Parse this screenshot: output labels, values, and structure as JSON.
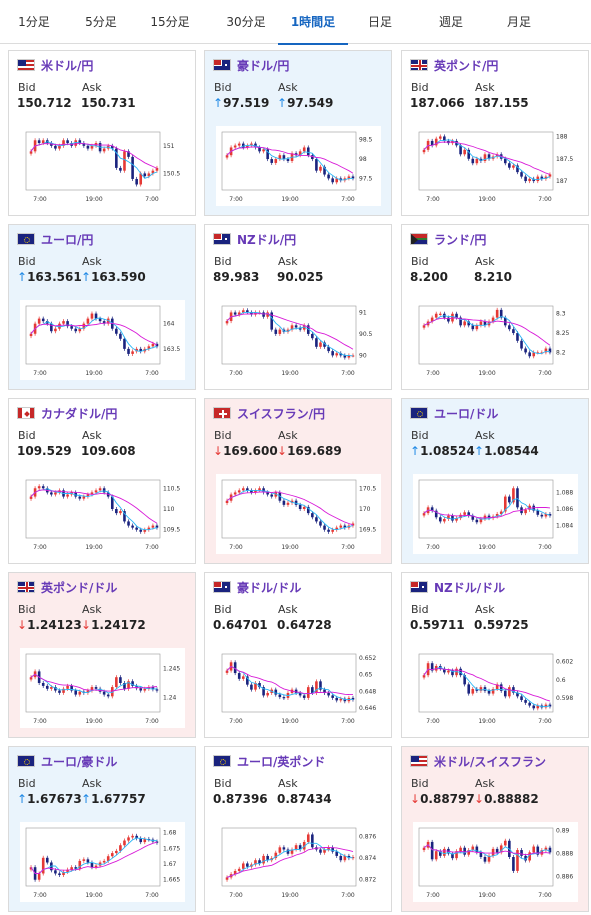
{
  "tabs": [
    {
      "label": "1分足",
      "active": false
    },
    {
      "label": "5分足",
      "active": false
    },
    {
      "label": "15分足",
      "active": false
    },
    {
      "label": "30分足",
      "active": false
    },
    {
      "label": "1時間足",
      "active": true
    },
    {
      "label": "日足",
      "active": false
    },
    {
      "label": "週足",
      "active": false
    },
    {
      "label": "月足",
      "active": false
    }
  ],
  "colors": {
    "accent": "#1565c0",
    "pair": "#673ab7",
    "up_candle": "#e53935",
    "down_candle": "#1a237e",
    "ma_short": "#29b6f6",
    "ma_long": "#d81bd8"
  },
  "cards": [
    {
      "pair": "米ドル/円",
      "flag": "flag-us",
      "bid_label": "Bid",
      "ask_label": "Ask",
      "bid": "150.712",
      "ask": "150.731",
      "trend": "none",
      "chart_data": {
        "type": "candlestick",
        "ylim": [
          150.2,
          151.25
        ],
        "yticks": [
          "151",
          "150.5"
        ],
        "xticks": [
          "7:00",
          "19:00",
          "7:00"
        ],
        "close": [
          150.9,
          151.1,
          151.05,
          151.1,
          151.05,
          151.0,
          150.95,
          151.0,
          151.1,
          151.05,
          151.0,
          151.1,
          151.05,
          151.0,
          150.95,
          151.0,
          151.05,
          150.9,
          150.95,
          151.0,
          150.95,
          150.6,
          150.55,
          150.9,
          150.8,
          150.4,
          150.3,
          150.5,
          150.45,
          150.5,
          150.55,
          150.6
        ]
      }
    },
    {
      "pair": "豪ドル/円",
      "flag": "flag-au",
      "bid_label": "Bid",
      "ask_label": "Ask",
      "bid": "97.519",
      "ask": "97.549",
      "trend": "up",
      "chart_data": {
        "type": "candlestick",
        "ylim": [
          97.2,
          98.7
        ],
        "yticks": [
          "98.5",
          "98",
          "97.5"
        ],
        "xticks": [
          "7:00",
          "19:00",
          "7:00"
        ],
        "close": [
          98.1,
          98.3,
          98.35,
          98.4,
          98.3,
          98.35,
          98.4,
          98.3,
          98.2,
          98.25,
          98.0,
          97.9,
          98.0,
          98.1,
          98.0,
          97.95,
          98.15,
          98.1,
          98.2,
          98.3,
          98.1,
          98.0,
          97.7,
          97.8,
          97.6,
          97.5,
          97.4,
          97.5,
          97.45,
          97.5,
          97.55,
          97.5
        ]
      }
    },
    {
      "pair": "英ポンド/円",
      "flag": "flag-gb",
      "bid_label": "Bid",
      "ask_label": "Ask",
      "bid": "187.066",
      "ask": "187.155",
      "trend": "none",
      "chart_data": {
        "type": "candlestick",
        "ylim": [
          186.8,
          188.1
        ],
        "yticks": [
          "188",
          "187.5",
          "187"
        ],
        "xticks": [
          "7:00",
          "19:00",
          "7:00"
        ],
        "close": [
          187.7,
          187.9,
          187.8,
          187.95,
          188.0,
          187.9,
          187.85,
          187.9,
          187.8,
          187.6,
          187.7,
          187.5,
          187.4,
          187.5,
          187.45,
          187.6,
          187.5,
          187.55,
          187.6,
          187.5,
          187.4,
          187.3,
          187.35,
          187.2,
          187.1,
          187.0,
          187.05,
          187.0,
          187.1,
          187.05,
          187.1,
          187.15
        ]
      }
    },
    {
      "pair": "ユーロ/円",
      "flag": "flag-eu",
      "bid_label": "Bid",
      "ask_label": "Ask",
      "bid": "163.561",
      "ask": "163.590",
      "trend": "up",
      "chart_data": {
        "type": "candlestick",
        "ylim": [
          163.2,
          164.35
        ],
        "yticks": [
          "164",
          "163.5"
        ],
        "xticks": [
          "7:00",
          "19:00",
          "7:00"
        ],
        "close": [
          163.8,
          164.0,
          164.1,
          164.05,
          164.0,
          163.85,
          163.9,
          164.0,
          164.05,
          163.95,
          163.9,
          163.85,
          163.9,
          164.0,
          164.1,
          164.2,
          164.1,
          164.05,
          164.0,
          164.1,
          163.9,
          163.8,
          163.7,
          163.5,
          163.4,
          163.45,
          163.5,
          163.45,
          163.5,
          163.55,
          163.6,
          163.55
        ]
      }
    },
    {
      "pair": "NZドル/円",
      "flag": "flag-nz",
      "bid_label": "Bid",
      "ask_label": "Ask",
      "bid": "89.983",
      "ask": "90.025",
      "trend": "none",
      "chart_data": {
        "type": "candlestick",
        "ylim": [
          89.8,
          91.15
        ],
        "yticks": [
          "91",
          "90.5",
          "90"
        ],
        "xticks": [
          "7:00",
          "19:00",
          "7:00"
        ],
        "close": [
          90.8,
          91.0,
          90.95,
          91.0,
          91.05,
          91.0,
          90.95,
          91.0,
          91.0,
          90.9,
          91.0,
          90.6,
          90.5,
          90.6,
          90.55,
          90.6,
          90.7,
          90.65,
          90.6,
          90.7,
          90.5,
          90.4,
          90.2,
          90.3,
          90.2,
          90.1,
          90.0,
          90.05,
          90.0,
          89.95,
          90.0,
          90.0
        ]
      }
    },
    {
      "pair": "ランド/円",
      "flag": "flag-za",
      "bid_label": "Bid",
      "ask_label": "Ask",
      "bid": "8.200",
      "ask": "8.210",
      "trend": "none",
      "chart_data": {
        "type": "candlestick",
        "ylim": [
          8.17,
          8.32
        ],
        "yticks": [
          "8.3",
          "8.25",
          "8.2"
        ],
        "xticks": [
          "7:00",
          "19:00",
          "7:00"
        ],
        "close": [
          8.27,
          8.28,
          8.29,
          8.3,
          8.3,
          8.29,
          8.28,
          8.3,
          8.29,
          8.27,
          8.28,
          8.27,
          8.26,
          8.27,
          8.28,
          8.27,
          8.28,
          8.29,
          8.31,
          8.29,
          8.27,
          8.26,
          8.25,
          8.23,
          8.21,
          8.2,
          8.19,
          8.2,
          8.2,
          8.2,
          8.21,
          8.2
        ]
      }
    },
    {
      "pair": "カナダドル/円",
      "flag": "flag-ca",
      "bid_label": "Bid",
      "ask_label": "Ask",
      "bid": "109.529",
      "ask": "109.608",
      "trend": "none",
      "chart_data": {
        "type": "candlestick",
        "ylim": [
          109.3,
          110.7
        ],
        "yticks": [
          "110.5",
          "110",
          "109.5"
        ],
        "xticks": [
          "7:00",
          "19:00",
          "7:00"
        ],
        "close": [
          110.3,
          110.5,
          110.55,
          110.5,
          110.4,
          110.35,
          110.4,
          110.45,
          110.3,
          110.35,
          110.4,
          110.3,
          110.25,
          110.3,
          110.35,
          110.4,
          110.45,
          110.5,
          110.4,
          110.3,
          110.0,
          109.9,
          109.95,
          109.7,
          109.6,
          109.55,
          109.5,
          109.45,
          109.5,
          109.55,
          109.6,
          109.55
        ]
      }
    },
    {
      "pair": "スイスフラン/円",
      "flag": "flag-ch",
      "bid_label": "Bid",
      "ask_label": "Ask",
      "bid": "169.600",
      "ask": "169.689",
      "trend": "down",
      "chart_data": {
        "type": "candlestick",
        "ylim": [
          169.3,
          170.7
        ],
        "yticks": [
          "170.5",
          "170",
          "169.5"
        ],
        "xticks": [
          "7:00",
          "19:00",
          "7:00"
        ],
        "close": [
          170.2,
          170.35,
          170.4,
          170.45,
          170.5,
          170.45,
          170.4,
          170.45,
          170.5,
          170.4,
          170.35,
          170.3,
          170.4,
          170.2,
          170.1,
          170.15,
          170.2,
          170.1,
          170.0,
          170.05,
          169.9,
          169.8,
          169.7,
          169.6,
          169.5,
          169.45,
          169.5,
          169.55,
          169.6,
          169.55,
          169.6,
          169.65
        ]
      }
    },
    {
      "pair": "ユーロ/ドル",
      "flag": "flag-eu",
      "bid_label": "Bid",
      "ask_label": "Ask",
      "bid": "1.08524",
      "ask": "1.08544",
      "trend": "up",
      "chart_data": {
        "type": "candlestick",
        "ylim": [
          1.0825,
          1.0895
        ],
        "yticks": [
          "1.088",
          "1.086",
          "1.084"
        ],
        "xticks": [
          "7:00",
          "19:00",
          "7:00"
        ],
        "close": [
          1.0855,
          1.0862,
          1.0858,
          1.085,
          1.0845,
          1.0848,
          1.0852,
          1.0846,
          1.0849,
          1.0853,
          1.0856,
          1.0852,
          1.0847,
          1.0844,
          1.0848,
          1.0852,
          1.0849,
          1.0851,
          1.0854,
          1.0857,
          1.0875,
          1.0868,
          1.0885,
          1.0862,
          1.0855,
          1.0859,
          1.0864,
          1.0858,
          1.0853,
          1.0851,
          1.0854,
          1.0852
        ]
      }
    },
    {
      "pair": "英ポンド/ドル",
      "flag": "flag-gb",
      "bid_label": "Bid",
      "ask_label": "Ask",
      "bid": "1.24123",
      "ask": "1.24172",
      "trend": "down",
      "chart_data": {
        "type": "candlestick",
        "ylim": [
          1.2375,
          1.2475
        ],
        "yticks": [
          "1.245",
          "1.24"
        ],
        "xticks": [
          "7:00",
          "19:00",
          "7:00"
        ],
        "close": [
          1.2435,
          1.2445,
          1.2425,
          1.242,
          1.2415,
          1.2418,
          1.2412,
          1.2408,
          1.2415,
          1.242,
          1.2412,
          1.2405,
          1.241,
          1.2408,
          1.2412,
          1.2418,
          1.2415,
          1.241,
          1.2405,
          1.2402,
          1.2418,
          1.2435,
          1.2425,
          1.2415,
          1.2428,
          1.242,
          1.2416,
          1.2412,
          1.2415,
          1.2418,
          1.2414,
          1.2412
        ]
      }
    },
    {
      "pair": "豪ドル/ドル",
      "flag": "flag-au",
      "bid_label": "Bid",
      "ask_label": "Ask",
      "bid": "0.64701",
      "ask": "0.64728",
      "trend": "none",
      "chart_data": {
        "type": "candlestick",
        "ylim": [
          0.6455,
          0.6525
        ],
        "yticks": [
          "0.652",
          "0.65",
          "0.648",
          "0.646"
        ],
        "xticks": [
          "7:00",
          "19:00",
          "7:00"
        ],
        "close": [
          0.6505,
          0.6515,
          0.6502,
          0.6495,
          0.6498,
          0.6488,
          0.6482,
          0.649,
          0.6485,
          0.6475,
          0.6478,
          0.6482,
          0.6476,
          0.6473,
          0.6472,
          0.6478,
          0.6482,
          0.6478,
          0.6475,
          0.6472,
          0.6485,
          0.6478,
          0.6492,
          0.6482,
          0.6478,
          0.6475,
          0.6472,
          0.6469,
          0.6471,
          0.6468,
          0.6472,
          0.647
        ]
      }
    },
    {
      "pair": "NZドル/ドル",
      "flag": "flag-nz",
      "bid_label": "Bid",
      "ask_label": "Ask",
      "bid": "0.59711",
      "ask": "0.59725",
      "trend": "none",
      "chart_data": {
        "type": "candlestick",
        "ylim": [
          0.5965,
          0.6028
        ],
        "yticks": [
          "0.602",
          "0.6",
          "0.598"
        ],
        "xticks": [
          "7:00",
          "19:00",
          "7:00"
        ],
        "close": [
          0.6005,
          0.6018,
          0.601,
          0.6015,
          0.6012,
          0.6008,
          0.601,
          0.6005,
          0.6012,
          0.6005,
          0.5995,
          0.5985,
          0.599,
          0.5988,
          0.5992,
          0.5988,
          0.5985,
          0.599,
          0.5995,
          0.5988,
          0.5982,
          0.5992,
          0.5986,
          0.5982,
          0.5978,
          0.5975,
          0.5972,
          0.5969,
          0.5972,
          0.597,
          0.5973,
          0.5971
        ]
      }
    },
    {
      "pair": "ユーロ/豪ドル",
      "flag": "flag-eu",
      "bid_label": "Bid",
      "ask_label": "Ask",
      "bid": "1.67673",
      "ask": "1.67757",
      "trend": "up",
      "chart_data": {
        "type": "candlestick",
        "ylim": [
          1.663,
          1.6815
        ],
        "yticks": [
          "1.68",
          "1.675",
          "1.67",
          "1.665"
        ],
        "xticks": [
          "7:00",
          "19:00",
          "7:00"
        ],
        "close": [
          1.669,
          1.665,
          1.667,
          1.672,
          1.6705,
          1.668,
          1.667,
          1.6665,
          1.6675,
          1.6682,
          1.669,
          1.6685,
          1.671,
          1.6715,
          1.6705,
          1.669,
          1.6695,
          1.6705,
          1.671,
          1.6725,
          1.6735,
          1.6742,
          1.676,
          1.6775,
          1.6785,
          1.679,
          1.6782,
          1.677,
          1.678,
          1.6778,
          1.6772,
          1.6768
        ]
      }
    },
    {
      "pair": "ユーロ/英ポンド",
      "flag": "flag-eu",
      "bid_label": "Bid",
      "ask_label": "Ask",
      "bid": "0.87396",
      "ask": "0.87434",
      "trend": "none",
      "chart_data": {
        "type": "candlestick",
        "ylim": [
          0.8714,
          0.8768
        ],
        "yticks": [
          "0.876",
          "0.874",
          "0.872"
        ],
        "xticks": [
          "7:00",
          "19:00",
          "7:00"
        ],
        "close": [
          0.8722,
          0.8725,
          0.8728,
          0.873,
          0.8735,
          0.8732,
          0.8734,
          0.8738,
          0.8735,
          0.8742,
          0.8738,
          0.874,
          0.8745,
          0.875,
          0.8748,
          0.8744,
          0.8748,
          0.8752,
          0.8748,
          0.8755,
          0.8762,
          0.875,
          0.8748,
          0.8745,
          0.8748,
          0.875,
          0.8746,
          0.8742,
          0.8738,
          0.8742,
          0.874,
          0.8741
        ]
      }
    },
    {
      "pair": "米ドル/スイスフラン",
      "flag": "flag-us",
      "bid_label": "Bid",
      "ask_label": "Ask",
      "bid": "0.88797",
      "ask": "0.88882",
      "trend": "down",
      "chart_data": {
        "type": "candlestick",
        "ylim": [
          0.8852,
          0.8902
        ],
        "yticks": [
          "0.89",
          "0.888",
          "0.886"
        ],
        "xticks": [
          "7:00",
          "19:00",
          "7:00"
        ],
        "close": [
          0.8885,
          0.889,
          0.8875,
          0.8882,
          0.8878,
          0.8884,
          0.888,
          0.8876,
          0.8882,
          0.8885,
          0.8879,
          0.8883,
          0.8886,
          0.8881,
          0.8877,
          0.8873,
          0.8878,
          0.8884,
          0.8881,
          0.8887,
          0.8891,
          0.8877,
          0.8865,
          0.8883,
          0.8878,
          0.8874,
          0.8881,
          0.8886,
          0.8879,
          0.8883,
          0.8885,
          0.8881
        ]
      }
    }
  ]
}
